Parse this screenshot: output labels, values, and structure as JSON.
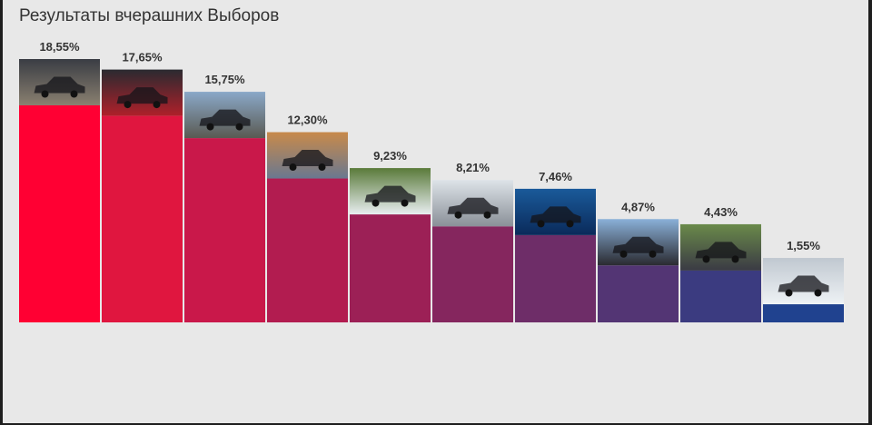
{
  "title": "Результаты вчерашних Выборов",
  "colors": {
    "panel_bg": "#e8e8e8",
    "title": "#333333",
    "label": "#333333"
  },
  "chart_data": {
    "type": "bar",
    "title": "Результаты вчерашних Выборов",
    "xlabel": "",
    "ylabel": "",
    "ylim": [
      0,
      18.55
    ],
    "grid": false,
    "legend": "none",
    "categories": [
      "",
      "",
      "",
      "",
      "",
      "",
      "",
      "",
      "",
      ""
    ],
    "values": [
      18.55,
      17.65,
      15.75,
      12.3,
      9.23,
      8.21,
      7.46,
      4.87,
      4.43,
      1.55
    ],
    "labels": [
      "18,55%",
      "17,65%",
      "15,75%",
      "12,30%",
      "9,23%",
      "8,21%",
      "7,46%",
      "4,87%",
      "4,43%",
      "1,55%"
    ],
    "bar_colors": [
      "#ff0033",
      "#e0163f",
      "#c9184a",
      "#b21c50",
      "#9c2056",
      "#85265e",
      "#6e2d68",
      "#533574",
      "#3b3b80",
      "#20428f"
    ],
    "photo_icons": [
      "car-photo-icon",
      "car-photo-icon",
      "car-photo-icon",
      "car-photo-icon",
      "car-photo-icon",
      "car-photo-icon",
      "car-photo-icon",
      "car-photo-icon",
      "car-photo-icon",
      "car-photo-icon"
    ],
    "photo_colors": [
      [
        "#3a3d44",
        "#8a8070"
      ],
      [
        "#2a2a30",
        "#b0202a"
      ],
      [
        "#8aa8c8",
        "#5a5a52"
      ],
      [
        "#c88a4a",
        "#6a7890"
      ],
      [
        "#5a7a3a",
        "#e8eef0"
      ],
      [
        "#dde3e8",
        "#8a9098"
      ],
      [
        "#1a5a9a",
        "#0a2a5a"
      ],
      [
        "#8ab0d8",
        "#2a2a30"
      ],
      [
        "#6a8a4a",
        "#3a3a44"
      ],
      [
        "#c0c8d0",
        "#eef2f5"
      ]
    ]
  }
}
